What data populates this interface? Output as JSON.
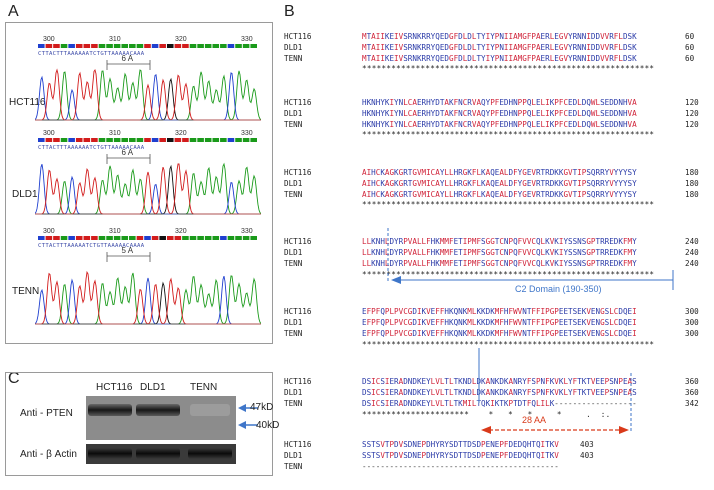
{
  "panels": {
    "a": {
      "letter": "A"
    },
    "b": {
      "letter": "B"
    },
    "c": {
      "letter": "C"
    }
  },
  "chromatograms": [
    {
      "sample": "HCT116",
      "ticks": [
        "300",
        "310",
        "320",
        "330"
      ],
      "dna": "CTTACTTTAAAAAATCTGTTAAAAACAAA",
      "brace": "6 A"
    },
    {
      "sample": "DLD1",
      "ticks": [
        "300",
        "310",
        "320",
        "330"
      ],
      "dna": "CTTACTTTAAAAAATCTGTTAAAAACAAA",
      "brace": "6 A"
    },
    {
      "sample": "TENN",
      "ticks": [
        "300",
        "310",
        "320",
        "330"
      ],
      "dna": "CTTACTTTAAAAATCTGTTAAAAACAAAA",
      "brace": "5 A"
    }
  ],
  "alignment": {
    "samples": [
      "HCT116",
      "DLD1",
      "TENN"
    ],
    "blocks": [
      {
        "seqs": [
          "MTAIIKEIVSRNKRRYQEDGFDLDLTYIYPNIIAMGFPAERLEGVYRNNIDDVVRFLDSK",
          "MTAIIKEIVSRNKRRYQEDGFDLDLTYIYPNIIAMGFPAERLEGVYRNNIDDVVRFLDSK",
          "MTAIIKEIVSRNKRRYQEDGFDLDLTYIYPNIIAMGFPAERLEGVYRNNIDDVVRFLDSK"
        ],
        "nums": [
          "60",
          "60",
          "60"
        ],
        "cons": "************************************************************"
      },
      {
        "seqs": [
          "HKNHYKIYNLCAERHYDTAKFNCRVAQYPFEDHNPPQLELIKPFCEDLDQWLSEDDNHVA",
          "HKNHYKIYNLCAERHYDTAKFNCRVAQYPFEDHNPPQLELIKPFCEDLDQWLSEDDNHVA",
          "HKNHYKIYNLCAERHYDTAKFNCRVAQYPFEDHNPPQLELIKPFCEDLDQWLSEDDNHVA"
        ],
        "nums": [
          "120",
          "120",
          "120"
        ],
        "cons": "************************************************************"
      },
      {
        "seqs": [
          "AIHCKAGKGRTGVMICAYLLHRGKFLKAQEALDFYGEVRTRDKKGVTIPSQRRYVYYYSY",
          "AIHCKAGKGRTGVMICAYLLHRGKFLKAQEALDFYGEVRTRDKKGVTIPSQRRYVYYYSY",
          "AIHCKAGKGRTGVMICAYLLHRGKFLKAQEALDFYGEVRTRDKKGVTIPSQRRYVYYYSY"
        ],
        "nums": [
          "180",
          "180",
          "180"
        ],
        "cons": "************************************************************"
      },
      {
        "seqs": [
          "LLKNHLDYRPVALLFHKMMFETIPMFSGGTCNPQFVVCQLKVKIYSSNSGPTRREDKFMY",
          "LLKNHLDYRPVALLFHKMMFETIPMFSGGTCNPQFVVCQLKVKIYSSNSGPTRREDKFMY",
          "LLKNHLDYRPVALLFHKMMFETIPMFSGGTCNPQFVVCQLKVKIYSSNSGPTRREDKFMY"
        ],
        "nums": [
          "240",
          "240",
          "240"
        ],
        "cons": "************************************************************"
      },
      {
        "seqs": [
          "EFPFQPLPVCGDIKVEFFHKQNKMLKKDKMFHFWVNTFFIPGPEETSEKVENGSLCDQEI",
          "EFPFQPLPVCGDIKVEFFHKQNKMLKKDKMFHFWVNTFFIPGPEETSEKVENGSLCDQEI",
          "EFPFQPLPVCGDIKVEFFHKQNKMLKKDKMFHFWVNTFFIPGPEETSEKVENGSLCDQEI"
        ],
        "nums": [
          "300",
          "300",
          "300"
        ],
        "cons": "************************************************************"
      },
      {
        "seqs": [
          "DSICSIERADNDKEYLVLTLTKNDLDKANKDKANRYFSPNFKVKLYFTKTVEEPSNPEAS",
          "DSICSIERADNDKEYLVLTLTKNDLDKANKDKANRYFSPNFKVKLYFTKTVEEPSNPEAS",
          "DSICSIERADNDKEYLVLTLTKMILTQKIKTKPTDTFQLILK------------------"
        ],
        "nums": [
          "360",
          "360",
          "342"
        ],
        "cons": "**********************    *   *   *     *     .  :.          "
      },
      {
        "seqs": [
          "SSTSVTPDVSDNEPDHYRYSDTTDSDPENEPFDEDQHTQITKV",
          "SSTSVTPDVSDNEPDHYRYSDTTDSDPENEPFDEDQHTQITKV",
          "-------------------------------------------"
        ],
        "nums": [
          "403",
          "403",
          ""
        ],
        "cons": ""
      }
    ],
    "c2_domain_label": "C2 Domain (190-350)",
    "aa_label": "28 AA"
  },
  "western_blot": {
    "lanes": [
      "HCT116",
      "DLD1",
      "TENN"
    ],
    "rows": [
      "Anti - PTEN",
      "Anti - β Actin"
    ],
    "markers": [
      "47kD",
      "40kD"
    ]
  },
  "colors": {
    "base_A": "#1a9a1a",
    "base_C": "#1f3fcf",
    "base_G": "#111111",
    "base_T": "#d21c1c",
    "annotation_blue": "#3f76c9",
    "annotation_red": "#d93a1a"
  }
}
